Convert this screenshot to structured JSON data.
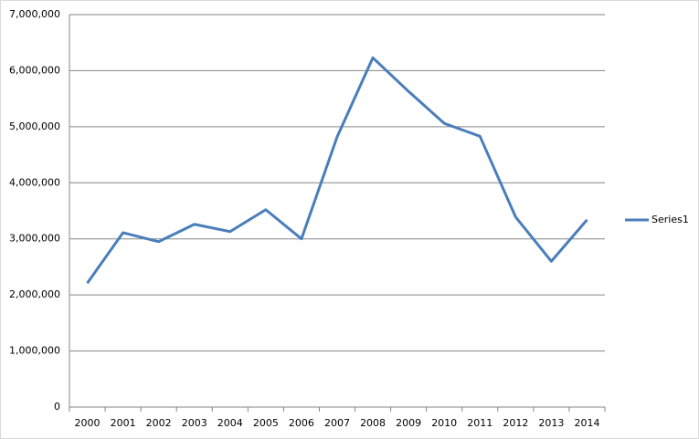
{
  "chart_data": {
    "type": "line",
    "categories": [
      "2000",
      "2001",
      "2002",
      "2003",
      "2004",
      "2005",
      "2006",
      "2007",
      "2008",
      "2009",
      "2010",
      "2011",
      "2012",
      "2013",
      "2014"
    ],
    "series": [
      {
        "name": "Series1",
        "color": "#4a7ebb",
        "values": [
          2210000,
          3110000,
          2950000,
          3260000,
          3130000,
          3520000,
          3000000,
          4820000,
          6230000,
          5630000,
          5060000,
          4830000,
          3390000,
          2600000,
          3340000
        ]
      }
    ],
    "ylim": [
      0,
      7000000
    ],
    "yticks": [
      0,
      {
        "value": 1000000,
        "label": "1,000,000"
      },
      {
        "value": 2000000,
        "label": "2,000,000"
      },
      {
        "value": 3000000,
        "label": "3,000,000"
      },
      {
        "value": 4000000,
        "label": "4,000,000"
      },
      {
        "value": 5000000,
        "label": "5,000,000"
      },
      {
        "value": 6000000,
        "label": "6,000,000"
      },
      {
        "value": 7000000,
        "label": "7,000,000"
      }
    ],
    "grid": true,
    "legend": "right"
  }
}
